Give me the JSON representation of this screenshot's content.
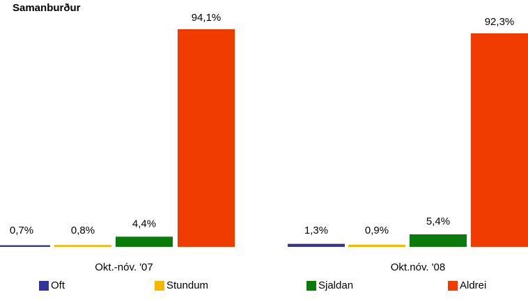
{
  "chart_data": {
    "type": "bar",
    "title": "Samanburður",
    "ylim": [
      0,
      100
    ],
    "grid": false,
    "legend_placement": "bottom",
    "categories": [
      "Okt.-nóv. '07",
      "Okt.nóv. '08"
    ],
    "series": [
      {
        "name": "Oft",
        "color": "#333399",
        "values": [
          0.7,
          1.3
        ],
        "labels": [
          "0,7%",
          "1,3%"
        ]
      },
      {
        "name": "Stundum",
        "color": "#f5b800",
        "values": [
          0.8,
          0.9
        ],
        "labels": [
          "0,8%",
          "0,9%"
        ]
      },
      {
        "name": "Sjaldan",
        "color": "#0a7a0a",
        "values": [
          4.4,
          5.4
        ],
        "labels": [
          "4,4%",
          "5,4%"
        ]
      },
      {
        "name": "Aldrei",
        "color": "#f03c00",
        "values": [
          94.1,
          92.3
        ],
        "labels": [
          "94,1%",
          "92,3%"
        ]
      }
    ]
  }
}
